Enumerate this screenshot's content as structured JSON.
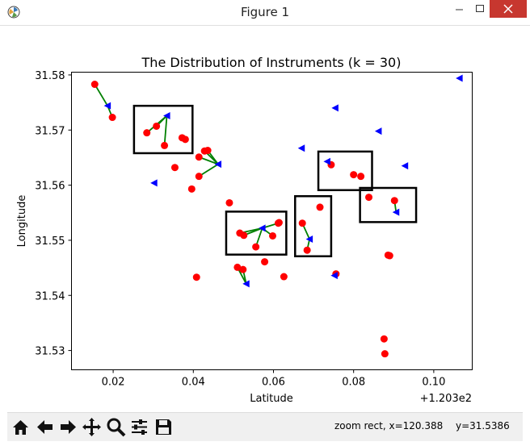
{
  "window": {
    "title": "Figure 1",
    "controls": [
      "minimize",
      "maximize",
      "close"
    ]
  },
  "toolbar": {
    "buttons": [
      {
        "name": "home-icon"
      },
      {
        "name": "back-icon"
      },
      {
        "name": "forward-icon"
      },
      {
        "name": "pan-icon"
      },
      {
        "name": "zoom-icon"
      },
      {
        "name": "configure-subplots-icon"
      },
      {
        "name": "save-icon"
      }
    ],
    "status_mode": "zoom rect, x=120.388",
    "status_y": "y=31.5386"
  },
  "chart_data": {
    "type": "scatter",
    "title": "The Distribution of Instruments (k = 30)",
    "xlabel": "Latitude",
    "ylabel": "Longitude",
    "x_offset_label": "+1.203e2",
    "xlim": [
      0.0096,
      0.1096
    ],
    "ylim": [
      31.5265,
      31.5805
    ],
    "xticks": [
      0.02,
      0.04,
      0.06,
      0.08,
      0.1
    ],
    "xtick_labels": [
      "0.02",
      "0.04",
      "0.06",
      "0.08",
      "0.10"
    ],
    "yticks": [
      31.53,
      31.54,
      31.55,
      31.56,
      31.57,
      31.58
    ],
    "ytick_labels": [
      "31.53",
      "31.54",
      "31.55",
      "31.56",
      "31.57",
      "31.58"
    ],
    "colors": {
      "points": "#ff0000",
      "centers": "#0000ff",
      "links": "#008000",
      "boxes": "#000000"
    },
    "series": [
      {
        "marker": "circle",
        "x": [
          0.0154,
          0.0198,
          0.0284,
          0.0308,
          0.0328,
          0.0372,
          0.038,
          0.0354,
          0.0396,
          0.0414,
          0.0428,
          0.0436,
          0.0414,
          0.049,
          0.0408,
          0.0516,
          0.0526,
          0.0556,
          0.0598,
          0.0612,
          0.0614,
          0.051,
          0.0524,
          0.0578,
          0.0626,
          0.0672,
          0.0684,
          0.0716,
          0.0744,
          0.08,
          0.0818,
          0.0838,
          0.0902,
          0.089,
          0.0886,
          0.0756,
          0.0876,
          0.0878
        ],
        "y": [
          31.5783,
          31.5723,
          31.5695,
          31.5707,
          31.5672,
          31.5686,
          31.5683,
          31.5632,
          31.5593,
          31.5651,
          31.5662,
          31.5663,
          31.5616,
          31.5568,
          31.5433,
          31.5513,
          31.5509,
          31.5488,
          31.5508,
          31.5531,
          31.5532,
          31.5451,
          31.5447,
          31.5461,
          31.5434,
          31.5531,
          31.5482,
          31.556,
          31.5637,
          31.5619,
          31.5616,
          31.5578,
          31.5572,
          31.5472,
          31.5473,
          31.5439,
          31.5321,
          31.5294
        ]
      },
      {
        "marker": "triangle-left",
        "x": [
          0.0186,
          0.0334,
          0.0462,
          0.0302,
          0.0532,
          0.0572,
          0.069,
          0.067,
          0.0734,
          0.0754,
          0.0752,
          0.0862,
          0.0906,
          0.0928,
          0.1064
        ],
        "y": [
          31.5744,
          31.5726,
          31.5638,
          31.5604,
          31.5421,
          31.5522,
          31.5502,
          31.5667,
          31.5643,
          31.574,
          31.5436,
          31.5698,
          31.5551,
          31.5635,
          31.5794
        ]
      }
    ],
    "links": [
      [
        0.0154,
        31.5783,
        0.0186,
        31.5744
      ],
      [
        0.0186,
        31.5744,
        0.0198,
        31.5723
      ],
      [
        0.0284,
        31.5695,
        0.0334,
        31.5726
      ],
      [
        0.0308,
        31.5707,
        0.0334,
        31.5726
      ],
      [
        0.0328,
        31.5672,
        0.0334,
        31.5726
      ],
      [
        0.0414,
        31.5651,
        0.0462,
        31.5638
      ],
      [
        0.0428,
        31.5662,
        0.0462,
        31.5638
      ],
      [
        0.0436,
        31.5663,
        0.0462,
        31.5638
      ],
      [
        0.0414,
        31.5616,
        0.0462,
        31.5638
      ],
      [
        0.0516,
        31.5513,
        0.0572,
        31.5522
      ],
      [
        0.0526,
        31.5509,
        0.0572,
        31.5522
      ],
      [
        0.0556,
        31.5488,
        0.0572,
        31.5522
      ],
      [
        0.0598,
        31.5508,
        0.0572,
        31.5522
      ],
      [
        0.0612,
        31.5531,
        0.0572,
        31.5522
      ],
      [
        0.051,
        31.5451,
        0.0532,
        31.5421
      ],
      [
        0.0524,
        31.5447,
        0.0532,
        31.5421
      ],
      [
        0.0672,
        31.5531,
        0.069,
        31.5502
      ],
      [
        0.0684,
        31.5482,
        0.069,
        31.5502
      ],
      [
        0.0902,
        31.5572,
        0.0906,
        31.5551
      ]
    ],
    "boxes": [
      [
        0.0252,
        31.5658,
        0.0398,
        31.5744
      ],
      [
        0.0482,
        31.5474,
        0.0632,
        31.5552
      ],
      [
        0.0654,
        31.5471,
        0.0744,
        31.558
      ],
      [
        0.0712,
        31.5591,
        0.0846,
        31.5661
      ],
      [
        0.0816,
        31.5533,
        0.0956,
        31.5595
      ]
    ],
    "grid": false,
    "legend": "none"
  }
}
